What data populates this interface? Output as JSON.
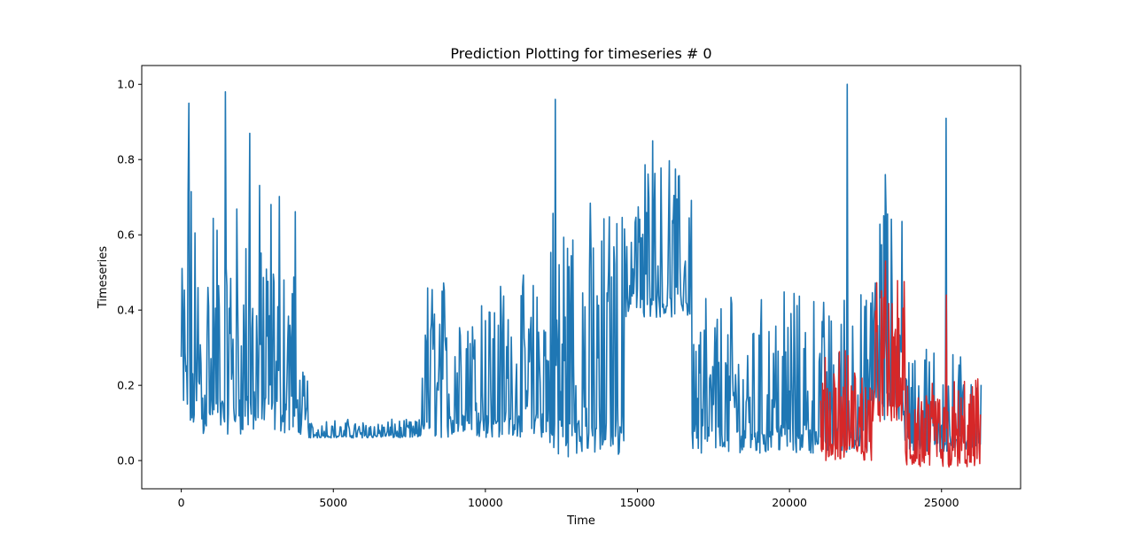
{
  "chart_data": {
    "type": "line",
    "title": "Prediction Plotting for timeseries # 0",
    "xlabel": "Time",
    "ylabel": "Timeseries",
    "xlim": [
      -1300,
      27600
    ],
    "ylim": [
      -0.075,
      1.05
    ],
    "xticks": [
      0,
      5000,
      10000,
      15000,
      20000,
      25000
    ],
    "xtick_labels": [
      "0",
      "5000",
      "10000",
      "15000",
      "20000",
      "25000"
    ],
    "yticks": [
      0.0,
      0.2,
      0.4,
      0.6,
      0.8,
      1.0
    ],
    "ytick_labels": [
      "0.0",
      "0.2",
      "0.4",
      "0.6",
      "0.8",
      "1.0"
    ],
    "grid": false,
    "legend": "none",
    "series": [
      {
        "color": "#1f77b4",
        "x_range": [
          0,
          26300
        ],
        "segments": [
          {
            "x0": 0,
            "x1": 3800,
            "low": 0.07,
            "high": 0.75
          },
          {
            "x0": 3800,
            "x1": 4200,
            "low": 0.07,
            "high": 0.25
          },
          {
            "x0": 4200,
            "x1": 7900,
            "low": 0.06,
            "high": 0.11
          },
          {
            "x0": 7900,
            "x1": 11900,
            "low": 0.06,
            "high": 0.5
          },
          {
            "x0": 11900,
            "x1": 14600,
            "low": 0.01,
            "high": 0.7
          },
          {
            "x0": 14600,
            "x1": 16800,
            "low": 0.38,
            "high": 0.8
          },
          {
            "x0": 16800,
            "x1": 22700,
            "low": 0.02,
            "high": 0.45
          },
          {
            "x0": 22700,
            "x1": 23800,
            "low": 0.1,
            "high": 0.7
          },
          {
            "x0": 23800,
            "x1": 26300,
            "low": 0.02,
            "high": 0.3
          }
        ],
        "peaks": [
          {
            "x": 250,
            "y": 0.95
          },
          {
            "x": 1450,
            "y": 0.98
          },
          {
            "x": 2250,
            "y": 0.87
          },
          {
            "x": 12300,
            "y": 0.96
          },
          {
            "x": 15500,
            "y": 0.85
          },
          {
            "x": 21900,
            "y": 1.0
          },
          {
            "x": 23150,
            "y": 0.76
          },
          {
            "x": 25150,
            "y": 0.91
          }
        ]
      },
      {
        "color": "#d62728",
        "x_range": [
          21000,
          26300
        ],
        "segments": [
          {
            "x0": 21000,
            "x1": 22700,
            "low": 0.0,
            "high": 0.3
          },
          {
            "x0": 22700,
            "x1": 23800,
            "low": 0.1,
            "high": 0.48
          },
          {
            "x0": 23800,
            "x1": 26300,
            "low": -0.02,
            "high": 0.22
          }
        ],
        "peaks": [
          {
            "x": 23150,
            "y": 0.53
          },
          {
            "x": 25150,
            "y": 0.44
          }
        ]
      }
    ]
  }
}
